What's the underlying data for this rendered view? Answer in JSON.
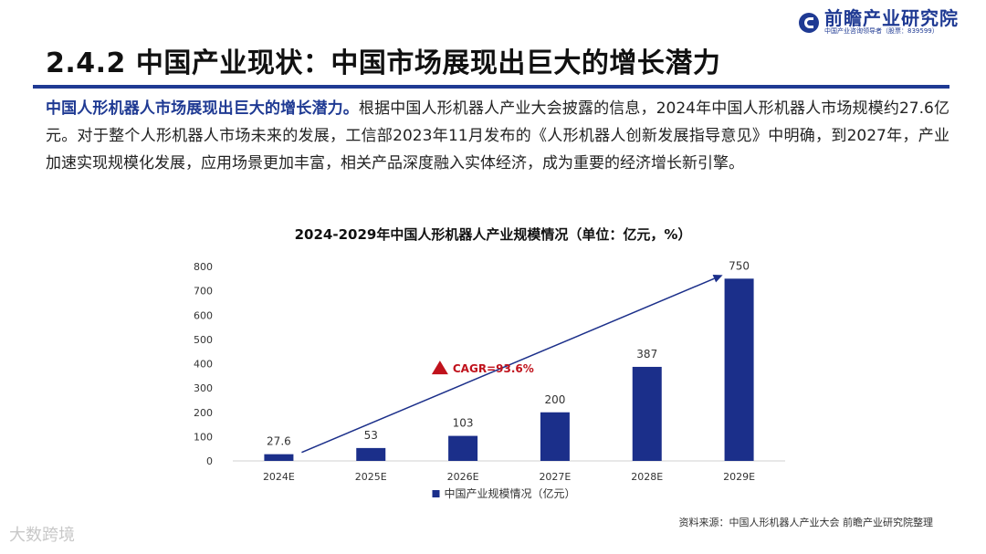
{
  "logo": {
    "name": "前瞻产业研究院",
    "subtitle": "中国产业咨询领导者（股票：839599）"
  },
  "page_title": "2.4.2 中国产业现状：中国市场展现出巨大的增长潜力",
  "intro": {
    "lead": "中国人形机器人市场展现出巨大的增长潜力。",
    "body": "根据中国人形机器人产业大会披露的信息，2024年中国人形机器人市场规模约27.6亿元。对于整个人形机器人市场未来的发展，工信部2023年11月发布的《人形机器人创新发展指导意见》中明确，到2027年，产业加速实现规模化发展，应用场景更加丰富，相关产品深度融入实体经济，成为重要的经济增长新引擎。"
  },
  "chart_data": {
    "type": "bar",
    "title": "2024-2029年中国人形机器人产业规模情况（单位：亿元，%）",
    "categories": [
      "2024E",
      "2025E",
      "2026E",
      "2027E",
      "2028E",
      "2029E"
    ],
    "series": [
      {
        "name": "中国产业规模情况（亿元）",
        "values": [
          27.6,
          53,
          103,
          200,
          387,
          750
        ]
      }
    ],
    "value_labels": [
      "27.6",
      "53",
      "103",
      "200",
      "387",
      "750"
    ],
    "y_ticks": [
      "0",
      "100",
      "200",
      "300",
      "400",
      "500",
      "600",
      "700",
      "800"
    ],
    "ylim": [
      0,
      800
    ],
    "annotation": "CAGR=93.6%",
    "legend_position": "bottom",
    "grid": false,
    "colors": {
      "bar": "#1b2f8a",
      "annotation": "#c0121c",
      "arrow": "#1b2f8a"
    }
  },
  "source": "资料来源：中国人形机器人产业大会 前瞻产业研究院整理",
  "watermark": "大数跨境"
}
